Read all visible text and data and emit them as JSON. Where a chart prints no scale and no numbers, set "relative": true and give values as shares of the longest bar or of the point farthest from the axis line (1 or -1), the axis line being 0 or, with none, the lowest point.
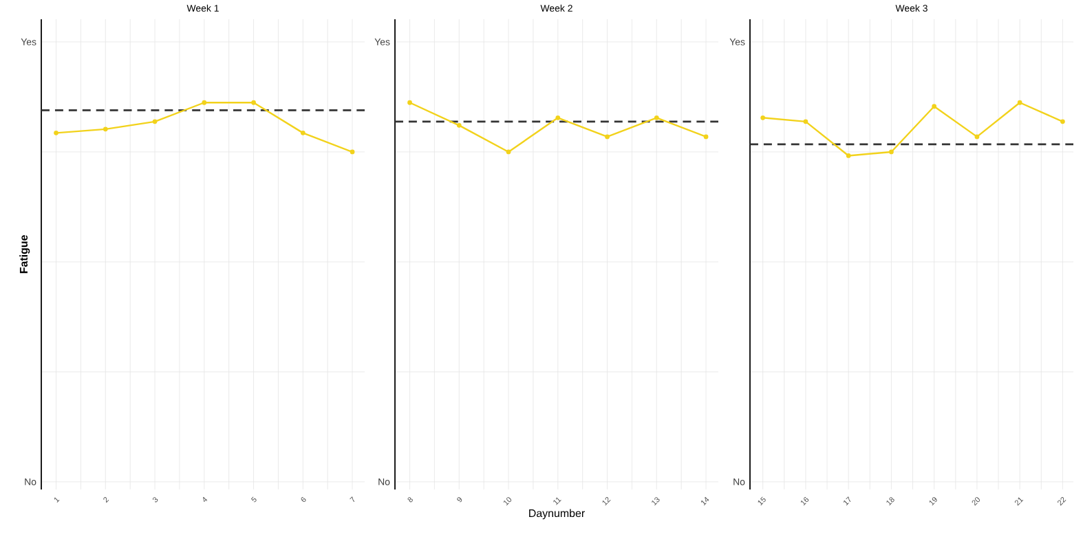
{
  "chart_data": [
    {
      "type": "line",
      "title": "Week 1",
      "ylabel": "Fatigue",
      "relative": true,
      "annotations": [
        "Yes",
        "No"
      ],
      "x": [
        1,
        2,
        3,
        4,
        5,
        6,
        7
      ],
      "values": [
        0.92,
        0.93,
        0.95,
        1,
        1,
        0.92,
        0.87
      ],
      "color": "#f2d21b",
      "marker": "circle",
      "xlim": [
        0.7,
        7.25
      ],
      "xticks": [
        1,
        2,
        3,
        4,
        5,
        6,
        7
      ],
      "grid": true,
      "ref_lines": [
        {
          "axis": "y",
          "value": 0.98,
          "color": "#333333",
          "line_style": "dashed"
        }
      ]
    },
    {
      "type": "line",
      "title": "Week 2",
      "xlabel": "Daynumber",
      "relative": true,
      "annotations": [
        "Yes",
        "No"
      ],
      "x": [
        8,
        9,
        10,
        11,
        12,
        13,
        14
      ],
      "values": [
        1,
        0.94,
        0.87,
        0.96,
        0.91,
        0.96,
        0.91
      ],
      "color": "#f2d21b",
      "marker": "circle",
      "xlim": [
        7.7,
        14.25
      ],
      "xticks": [
        8,
        9,
        10,
        11,
        12,
        13,
        14
      ],
      "grid": true,
      "ref_lines": [
        {
          "axis": "y",
          "value": 0.95,
          "color": "#333333",
          "line_style": "dashed"
        }
      ]
    },
    {
      "type": "line",
      "title": "Week 3",
      "relative": true,
      "annotations": [
        "Yes",
        "No"
      ],
      "x": [
        15,
        16,
        17,
        18,
        19,
        20,
        21,
        22
      ],
      "values": [
        0.96,
        0.95,
        0.86,
        0.87,
        0.99,
        0.91,
        1,
        0.95
      ],
      "color": "#f2d21b",
      "marker": "circle",
      "xlim": [
        14.7,
        22.25
      ],
      "xticks": [
        15,
        16,
        17,
        18,
        19,
        20,
        21,
        22
      ],
      "grid": true,
      "ref_lines": [
        {
          "axis": "y",
          "value": 0.89,
          "color": "#333333",
          "line_style": "dashed"
        }
      ]
    }
  ]
}
